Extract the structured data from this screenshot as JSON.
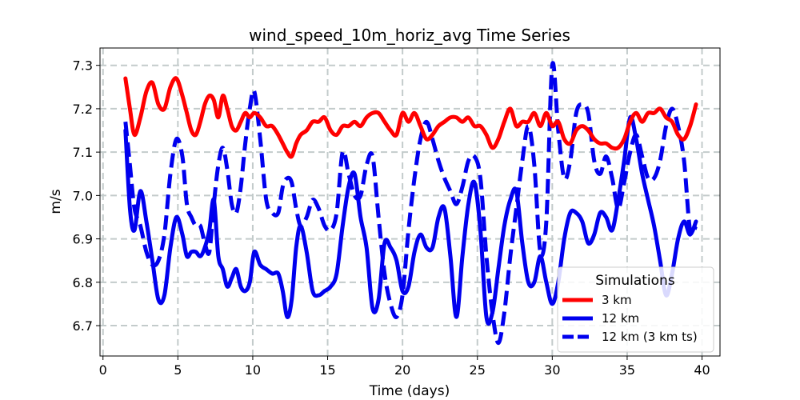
{
  "chart_data": {
    "type": "line",
    "title": "wind_speed_10m_horiz_avg Time Series",
    "xlabel": "Time (days)",
    "ylabel": "m/s",
    "xlim": [
      -0.2,
      41.2
    ],
    "ylim": [
      6.63,
      7.34
    ],
    "xticks": [
      0,
      5,
      10,
      15,
      20,
      25,
      30,
      35,
      40
    ],
    "yticks": [
      6.7,
      6.8,
      6.9,
      7.0,
      7.1,
      7.2,
      7.3
    ],
    "grid": true,
    "legend": {
      "title": "Simulations",
      "placement": "lower-right"
    },
    "series": [
      {
        "name": "3 km",
        "color": "#ff0000",
        "style": "solid",
        "x": [
          1.5,
          1.8,
          2.1,
          2.5,
          2.9,
          3.3,
          3.7,
          4.1,
          4.5,
          4.9,
          5.3,
          5.6,
          5.9,
          6.2,
          6.5,
          6.8,
          7.1,
          7.4,
          7.7,
          8.0,
          8.3,
          8.6,
          8.9,
          9.2,
          9.5,
          9.8,
          10.1,
          10.5,
          10.9,
          11.3,
          11.7,
          12.0,
          12.3,
          12.6,
          12.9,
          13.2,
          13.6,
          14.0,
          14.4,
          14.8,
          15.2,
          15.6,
          16.0,
          16.4,
          16.8,
          17.2,
          17.6,
          18.0,
          18.4,
          18.8,
          19.2,
          19.6,
          20.0,
          20.4,
          20.8,
          21.2,
          21.6,
          22.0,
          22.4,
          22.8,
          23.2,
          23.6,
          24.0,
          24.4,
          24.8,
          25.2,
          25.6,
          26.0,
          26.4,
          26.8,
          27.2,
          27.6,
          28.0,
          28.4,
          28.8,
          29.2,
          29.6,
          30.0,
          30.4,
          30.8,
          31.2,
          31.6,
          32.0,
          32.4,
          32.8,
          33.2,
          33.6,
          34.0,
          34.4,
          34.8,
          35.2,
          35.6,
          36.0,
          36.4,
          36.8,
          37.2,
          37.6,
          38.0,
          38.4,
          38.8,
          39.2,
          39.6
        ],
        "y": [
          7.27,
          7.2,
          7.14,
          7.18,
          7.24,
          7.26,
          7.21,
          7.2,
          7.25,
          7.27,
          7.23,
          7.19,
          7.15,
          7.14,
          7.17,
          7.21,
          7.23,
          7.22,
          7.18,
          7.23,
          7.2,
          7.16,
          7.15,
          7.17,
          7.19,
          7.18,
          7.19,
          7.18,
          7.16,
          7.16,
          7.14,
          7.12,
          7.1,
          7.09,
          7.12,
          7.14,
          7.15,
          7.17,
          7.17,
          7.18,
          7.15,
          7.14,
          7.16,
          7.16,
          7.17,
          7.16,
          7.18,
          7.19,
          7.19,
          7.17,
          7.15,
          7.14,
          7.19,
          7.17,
          7.19,
          7.16,
          7.13,
          7.14,
          7.16,
          7.17,
          7.18,
          7.18,
          7.17,
          7.18,
          7.16,
          7.16,
          7.14,
          7.11,
          7.13,
          7.17,
          7.2,
          7.16,
          7.17,
          7.17,
          7.19,
          7.16,
          7.19,
          7.16,
          7.17,
          7.13,
          7.12,
          7.15,
          7.16,
          7.15,
          7.13,
          7.12,
          7.12,
          7.11,
          7.11,
          7.13,
          7.17,
          7.19,
          7.17,
          7.19,
          7.19,
          7.2,
          7.18,
          7.17,
          7.14,
          7.13,
          7.16,
          7.21
        ]
      },
      {
        "name": "12 km",
        "color": "#0000ee",
        "style": "solid",
        "x": [
          1.5,
          1.8,
          2.1,
          2.5,
          2.9,
          3.3,
          3.7,
          4.1,
          4.5,
          4.9,
          5.3,
          5.6,
          5.9,
          6.2,
          6.5,
          6.8,
          7.1,
          7.4,
          7.7,
          8.0,
          8.3,
          8.6,
          8.9,
          9.2,
          9.5,
          9.8,
          10.1,
          10.5,
          10.9,
          11.3,
          11.7,
          12.0,
          12.3,
          12.6,
          12.9,
          13.2,
          13.6,
          14.0,
          14.4,
          14.8,
          15.2,
          15.6,
          16.0,
          16.4,
          16.8,
          17.2,
          17.6,
          18.0,
          18.4,
          18.8,
          19.2,
          19.6,
          20.0,
          20.4,
          20.8,
          21.2,
          21.6,
          22.0,
          22.4,
          22.8,
          23.2,
          23.6,
          24.0,
          24.4,
          24.8,
          25.2,
          25.6,
          26.0,
          26.4,
          26.8,
          27.2,
          27.6,
          28.0,
          28.4,
          28.8,
          29.2,
          29.6,
          30.0,
          30.4,
          30.8,
          31.2,
          31.6,
          32.0,
          32.4,
          32.8,
          33.2,
          33.6,
          34.0,
          34.4,
          34.8,
          35.2,
          35.6,
          36.0,
          36.4,
          36.8,
          37.2,
          37.6,
          38.0,
          38.4,
          38.8,
          39.2,
          39.6
        ],
        "y": [
          7.15,
          6.97,
          6.92,
          7.01,
          6.94,
          6.85,
          6.76,
          6.77,
          6.88,
          6.95,
          6.91,
          6.86,
          6.87,
          6.87,
          6.86,
          6.88,
          6.92,
          6.99,
          6.86,
          6.83,
          6.79,
          6.81,
          6.83,
          6.79,
          6.78,
          6.8,
          6.87,
          6.84,
          6.83,
          6.82,
          6.82,
          6.78,
          6.72,
          6.76,
          6.88,
          6.93,
          6.87,
          6.78,
          6.77,
          6.78,
          6.79,
          6.82,
          6.93,
          7.02,
          7.05,
          6.95,
          6.88,
          6.74,
          6.76,
          6.89,
          6.88,
          6.85,
          6.78,
          6.79,
          6.87,
          6.91,
          6.88,
          6.88,
          6.95,
          6.97,
          6.86,
          6.72,
          6.86,
          6.98,
          7.03,
          6.92,
          6.72,
          6.73,
          6.83,
          6.93,
          6.99,
          7.01,
          6.89,
          6.8,
          6.8,
          6.86,
          6.8,
          6.75,
          6.8,
          6.9,
          6.96,
          6.96,
          6.94,
          6.89,
          6.91,
          6.96,
          6.95,
          6.92,
          6.99,
          7.08,
          7.18,
          7.13,
          7.05,
          6.99,
          6.93,
          6.85,
          6.77,
          6.82,
          6.9,
          6.94,
          6.91,
          6.94
        ]
      },
      {
        "name": "12 km (3 km ts)",
        "color": "#0000ee",
        "style": "dashed",
        "x": [
          1.5,
          1.8,
          2.1,
          2.5,
          2.9,
          3.3,
          3.7,
          4.1,
          4.5,
          4.9,
          5.3,
          5.6,
          5.9,
          6.2,
          6.5,
          6.8,
          7.1,
          7.4,
          7.7,
          8.0,
          8.3,
          8.6,
          8.9,
          9.2,
          9.5,
          9.8,
          10.1,
          10.5,
          10.9,
          11.3,
          11.7,
          12.0,
          12.3,
          12.6,
          12.9,
          13.2,
          13.6,
          14.0,
          14.4,
          14.8,
          15.2,
          15.6,
          16.0,
          16.4,
          16.8,
          17.2,
          17.6,
          18.0,
          18.4,
          18.8,
          19.2,
          19.6,
          20.0,
          20.4,
          20.8,
          21.2,
          21.6,
          22.0,
          22.4,
          22.8,
          23.2,
          23.6,
          24.0,
          24.4,
          24.8,
          25.2,
          25.6,
          26.0,
          26.4,
          26.8,
          27.2,
          27.6,
          28.0,
          28.4,
          28.8,
          29.2,
          29.6,
          30.0,
          30.4,
          30.8,
          31.2,
          31.6,
          32.0,
          32.4,
          32.8,
          33.2,
          33.6,
          34.0,
          34.4,
          34.8,
          35.2,
          35.6,
          36.0,
          36.4,
          36.8,
          37.2,
          37.6,
          38.0,
          38.4,
          38.8,
          39.2,
          39.6
        ],
        "y": [
          7.17,
          7.07,
          6.97,
          6.93,
          6.87,
          6.84,
          6.85,
          6.91,
          7.05,
          7.13,
          7.09,
          6.98,
          6.95,
          6.93,
          6.93,
          6.89,
          6.87,
          6.98,
          7.07,
          7.11,
          7.06,
          6.98,
          6.96,
          7.02,
          7.12,
          7.2,
          7.24,
          7.13,
          6.99,
          6.96,
          6.96,
          7.02,
          7.04,
          7.03,
          6.97,
          6.93,
          6.95,
          6.99,
          6.97,
          6.93,
          6.92,
          6.96,
          7.1,
          7.05,
          7.0,
          7.0,
          7.07,
          7.09,
          6.95,
          6.82,
          6.75,
          6.72,
          6.77,
          6.92,
          7.04,
          7.13,
          7.17,
          7.13,
          7.08,
          7.04,
          7.01,
          6.98,
          7.02,
          7.08,
          7.09,
          7.04,
          6.86,
          6.73,
          6.66,
          6.73,
          6.86,
          6.97,
          7.08,
          7.16,
          7.07,
          6.87,
          6.94,
          7.3,
          7.15,
          7.04,
          7.08,
          7.19,
          7.21,
          7.19,
          7.08,
          7.05,
          7.09,
          7.04,
          6.97,
          7.03,
          7.1,
          7.14,
          7.09,
          7.04,
          7.04,
          7.08,
          7.16,
          7.2,
          7.16,
          7.08,
          6.92,
          6.93
        ]
      }
    ]
  }
}
